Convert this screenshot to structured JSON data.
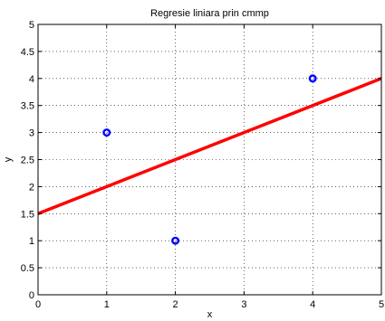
{
  "chart_data": {
    "type": "scatter",
    "title": "Regresie liniara prin cmmp",
    "xlabel": "x",
    "ylabel": "y",
    "xlim": [
      0,
      5
    ],
    "ylim": [
      0,
      5
    ],
    "grid": true,
    "xticks": [
      "0",
      "1",
      "2",
      "3",
      "4",
      "5"
    ],
    "yticks": [
      "0",
      "0.5",
      "1",
      "1.5",
      "2",
      "2.5",
      "3",
      "3.5",
      "4",
      "4.5",
      "5"
    ],
    "series": [
      {
        "kind": "scatter",
        "marker": "circle-open",
        "color": "#0000ff",
        "points": [
          {
            "x": 1,
            "y": 3
          },
          {
            "x": 2,
            "y": 1
          },
          {
            "x": 4,
            "y": 4
          }
        ]
      },
      {
        "kind": "line",
        "color": "#ff0000",
        "points": [
          {
            "x": 0,
            "y": 1.5
          },
          {
            "x": 5,
            "y": 4
          }
        ]
      }
    ]
  }
}
